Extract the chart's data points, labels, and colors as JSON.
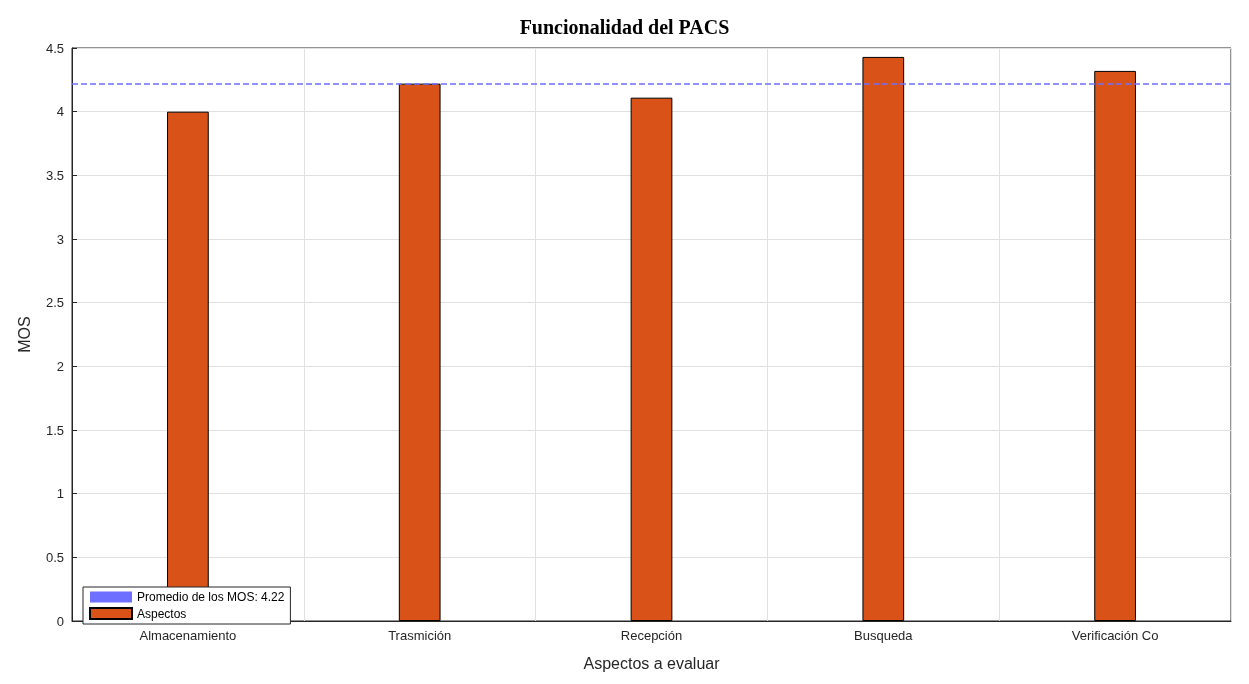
{
  "chart_data": {
    "type": "bar",
    "title": "Funcionalidad del PACS",
    "xlabel": "Aspectos a evaluar",
    "ylabel": "MOS",
    "categories": [
      "Almacenamiento",
      "Trasmición",
      "Recepción",
      "Busqueda",
      "Verificación Co"
    ],
    "series": [
      {
        "name": "Aspectos",
        "color": "#d95319",
        "values": [
          4.0,
          4.22,
          4.11,
          4.43,
          4.32
        ]
      }
    ],
    "ref_lines": [
      {
        "axis": "y",
        "value": 4.22,
        "label": "Promedio de los MOS: 4.22",
        "color": "#6f6fff",
        "line_style": "dashed"
      }
    ],
    "ylim": [
      0,
      4.5
    ],
    "yticks": [
      0,
      0.5,
      1,
      1.5,
      2,
      2.5,
      3,
      3.5,
      4,
      4.5
    ],
    "grid": true,
    "legend": "bottom left"
  }
}
